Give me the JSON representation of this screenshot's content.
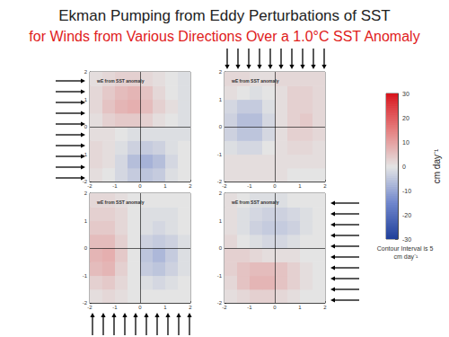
{
  "title": "Ekman Pumping from Eddy Perturbations of SST",
  "subtitle": "for Winds from Various Directions Over a 1.0°C SST Anomaly",
  "chart_data": [
    {
      "type": "heatmap",
      "title": "wE from SST anomaly",
      "x": [
        -1.75,
        -1.25,
        -0.75,
        -0.25,
        0.25,
        0.75,
        1.25,
        1.75
      ],
      "y": [
        -1.75,
        -1.25,
        -0.75,
        -0.25,
        0.25,
        0.75,
        1.25,
        1.75
      ],
      "values": [
        [
          1,
          0,
          -2,
          -4,
          -5,
          -4,
          -1,
          0
        ],
        [
          2,
          1,
          -2,
          -6,
          -8,
          -6,
          -2,
          0
        ],
        [
          2,
          1,
          -1,
          -3,
          -4,
          -3,
          -1,
          0
        ],
        [
          1,
          1,
          0,
          -1,
          -1,
          -1,
          -1,
          -1
        ],
        [
          1,
          3,
          4,
          4,
          3,
          1,
          0,
          -1
        ],
        [
          2,
          5,
          7,
          8,
          6,
          3,
          1,
          -1
        ],
        [
          2,
          4,
          6,
          7,
          5,
          2,
          0,
          -1
        ],
        [
          1,
          2,
          3,
          3,
          2,
          1,
          0,
          -1
        ]
      ],
      "xlim": [
        -2,
        2
      ],
      "ylim": [
        -2,
        2
      ],
      "xticks": [
        -2,
        -1,
        0,
        1,
        2
      ],
      "yticks": [
        -2,
        -1,
        0,
        1,
        2
      ]
    },
    {
      "type": "heatmap",
      "title": "wE from SST anomaly",
      "x": [
        -1.75,
        -1.25,
        -0.75,
        -0.25,
        0.25,
        0.75,
        1.25,
        1.75
      ],
      "y": [
        -1.75,
        -1.25,
        -0.75,
        -0.25,
        0.25,
        0.75,
        1.25,
        1.75
      ],
      "values": [
        [
          1,
          1,
          1,
          1,
          1,
          0,
          0,
          0
        ],
        [
          1,
          1,
          1,
          1,
          1,
          1,
          1,
          1
        ],
        [
          -1,
          -2,
          -2,
          0,
          1,
          2,
          2,
          1
        ],
        [
          -3,
          -5,
          -5,
          -2,
          1,
          3,
          3,
          2
        ],
        [
          -3,
          -6,
          -6,
          -2,
          1,
          3,
          4,
          2
        ],
        [
          -2,
          -4,
          -4,
          -1,
          1,
          3,
          3,
          2
        ],
        [
          1,
          0,
          -1,
          0,
          1,
          3,
          3,
          2
        ],
        [
          2,
          2,
          1,
          1,
          2,
          2,
          2,
          2
        ]
      ],
      "xlim": [
        -2,
        2
      ],
      "ylim": [
        -2,
        2
      ],
      "xticks": [
        -2,
        -1,
        0,
        1,
        2
      ],
      "yticks": [
        -2,
        -1,
        0,
        1,
        2
      ]
    },
    {
      "type": "heatmap",
      "title": "wE from SST anomaly",
      "x": [
        -1.75,
        -1.25,
        -0.75,
        -0.25,
        0.25,
        0.75,
        1.25,
        1.75
      ],
      "y": [
        -1.75,
        -1.25,
        -0.75,
        -0.25,
        0.25,
        0.75,
        1.25,
        1.75
      ],
      "values": [
        [
          1,
          2,
          1,
          0,
          0,
          0,
          0,
          0
        ],
        [
          3,
          4,
          2,
          0,
          -1,
          -2,
          -1,
          0
        ],
        [
          6,
          7,
          3,
          0,
          -4,
          -5,
          -3,
          -1
        ],
        [
          7,
          8,
          4,
          0,
          -5,
          -7,
          -4,
          -1
        ],
        [
          6,
          6,
          3,
          0,
          -3,
          -4,
          -3,
          -1
        ],
        [
          4,
          4,
          2,
          0,
          -1,
          -2,
          -1,
          0
        ],
        [
          3,
          3,
          2,
          0,
          -1,
          -1,
          -1,
          0
        ],
        [
          2,
          2,
          1,
          0,
          0,
          0,
          0,
          0
        ]
      ],
      "xlim": [
        -2,
        2
      ],
      "ylim": [
        -2,
        2
      ],
      "xticks": [
        -2,
        -1,
        0,
        1,
        2
      ],
      "yticks": [
        -2,
        -1,
        0,
        1,
        2
      ]
    },
    {
      "type": "heatmap",
      "title": "wE from SST anomaly",
      "x": [
        -1.75,
        -1.25,
        -0.75,
        -0.25,
        0.25,
        0.75,
        1.25,
        1.75
      ],
      "y": [
        -1.75,
        -1.25,
        -0.75,
        -0.25,
        0.25,
        0.75,
        1.25,
        1.75
      ],
      "values": [
        [
          1,
          2,
          3,
          3,
          2,
          1,
          0,
          0
        ],
        [
          2,
          5,
          7,
          7,
          5,
          3,
          1,
          0
        ],
        [
          3,
          5,
          6,
          6,
          5,
          3,
          1,
          0
        ],
        [
          3,
          3,
          2,
          1,
          1,
          1,
          0,
          0
        ],
        [
          2,
          0,
          -1,
          -2,
          -2,
          -1,
          0,
          0
        ],
        [
          1,
          -1,
          -3,
          -4,
          -4,
          -3,
          -1,
          0
        ],
        [
          1,
          -1,
          -2,
          -3,
          -3,
          -2,
          -1,
          0
        ],
        [
          1,
          0,
          -1,
          -1,
          -1,
          0,
          0,
          0
        ]
      ],
      "xlim": [
        -2,
        2
      ],
      "ylim": [
        -2,
        2
      ],
      "xticks": [
        -2,
        -1,
        0,
        1,
        2
      ],
      "yticks": [
        -2,
        -1,
        0,
        1,
        2
      ]
    }
  ],
  "colorbar": {
    "label": "cm day⁻¹",
    "range": [
      -30,
      30
    ],
    "ticks": [
      -30,
      -20,
      -10,
      0,
      10,
      20,
      30
    ],
    "colors": [
      "#1f3f9a",
      "#6f86cc",
      "#e4e4e4",
      "#e58080",
      "#d8141c"
    ],
    "annotation": "Contour Interval is 5 cm day⁻¹"
  }
}
